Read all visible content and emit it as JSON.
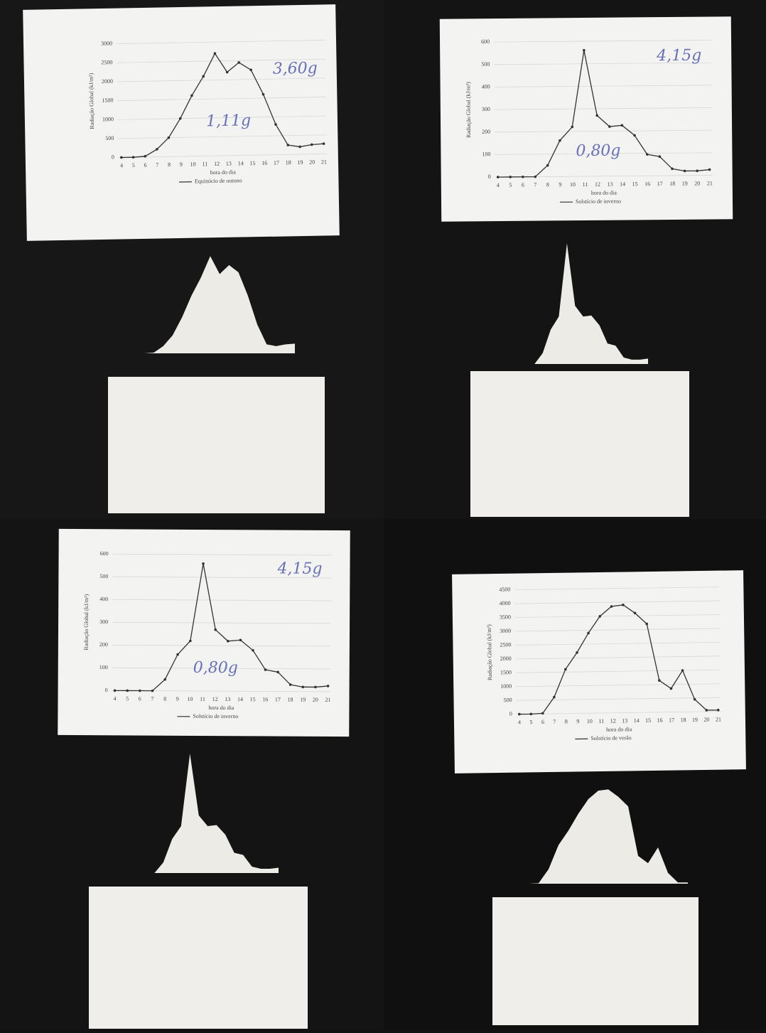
{
  "panels": [
    {
      "ylabel": "Radiação Global (kJ/m²)",
      "xlabel": "hora do dia",
      "categories": [
        4,
        5,
        6,
        7,
        8,
        9,
        10,
        11,
        12,
        13,
        14,
        15,
        16,
        17,
        18,
        19,
        20,
        21
      ],
      "ylim": [
        0,
        3000
      ],
      "yticks": [
        0,
        500,
        1000,
        1500,
        2000,
        2500,
        3000
      ],
      "series": [
        {
          "name": "Equinócio de outono",
          "color": "#333333",
          "values": [
            0,
            0,
            20,
            200,
            500,
            1000,
            1600,
            2100,
            2700,
            2200,
            2450,
            2250,
            1600,
            800,
            250,
            200,
            250,
            270
          ]
        }
      ],
      "notes": [
        "3,60g",
        "1,11g"
      ]
    },
    {
      "ylabel": "Radiação Global (kJ/m²)",
      "xlabel": "hora do dia",
      "categories": [
        4,
        5,
        6,
        7,
        8,
        9,
        10,
        11,
        12,
        13,
        14,
        15,
        16,
        17,
        18,
        19,
        20,
        21
      ],
      "ylim": [
        0,
        600
      ],
      "yticks": [
        0,
        100,
        200,
        300,
        400,
        500,
        600
      ],
      "series": [
        {
          "name": "Solstício de inverno",
          "color": "#333333",
          "values": [
            0,
            0,
            0,
            0,
            50,
            160,
            220,
            560,
            270,
            220,
            225,
            180,
            95,
            85,
            30,
            20,
            20,
            25
          ]
        }
      ],
      "notes": [
        "4,15g",
        "0,80g"
      ]
    },
    {
      "ylabel": "Radiação Global (kJ/m²)",
      "xlabel": "hora do dia",
      "categories": [
        4,
        5,
        6,
        7,
        8,
        9,
        10,
        11,
        12,
        13,
        14,
        15,
        16,
        17,
        18,
        19,
        20,
        21
      ],
      "ylim": [
        0,
        600
      ],
      "yticks": [
        0,
        100,
        200,
        300,
        400,
        500,
        600
      ],
      "series": [
        {
          "name": "Solstício de inverno",
          "color": "#333333",
          "values": [
            0,
            0,
            0,
            0,
            50,
            160,
            220,
            560,
            270,
            220,
            225,
            180,
            95,
            85,
            30,
            20,
            20,
            25
          ]
        }
      ],
      "notes": [
        "4,15g",
        "0,80g"
      ]
    },
    {
      "ylabel": "Radiação Global (kJ/m²)",
      "xlabel": "hora do dia",
      "categories": [
        4,
        5,
        6,
        7,
        8,
        9,
        10,
        11,
        12,
        13,
        14,
        15,
        16,
        17,
        18,
        19,
        20,
        21
      ],
      "ylim": [
        0,
        4500
      ],
      "yticks": [
        0,
        500,
        1000,
        1500,
        2000,
        2500,
        3000,
        3500,
        4000,
        4500
      ],
      "series": [
        {
          "name": "Solstício de verão",
          "color": "#333333",
          "values": [
            0,
            0,
            20,
            600,
            1600,
            2200,
            2900,
            3500,
            3850,
            3900,
            3600,
            3200,
            1150,
            850,
            1500,
            450,
            50,
            50
          ]
        }
      ],
      "notes": []
    }
  ]
}
